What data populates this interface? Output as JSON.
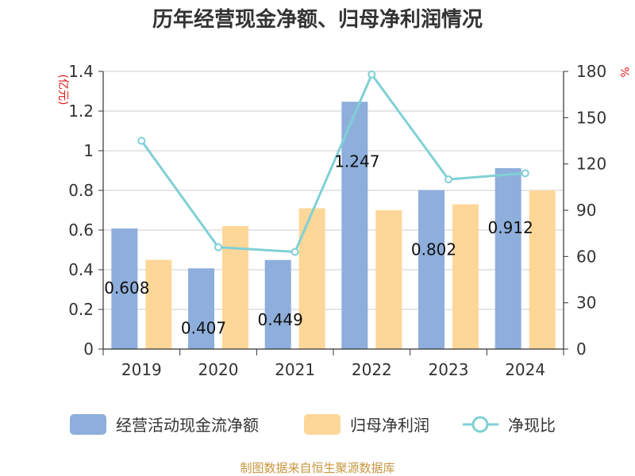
{
  "chart_data": {
    "type": "bar",
    "title": "历年经营现金净额、归母净利润情况",
    "categories": [
      "2019",
      "2020",
      "2021",
      "2022",
      "2023",
      "2024"
    ],
    "series": [
      {
        "name": "经营活动现金流净额",
        "kind": "bar",
        "axis": "left",
        "color": "#8eaedb",
        "values": [
          0.608,
          0.407,
          0.449,
          1.247,
          0.802,
          0.912
        ],
        "labels": [
          "0.608",
          "0.407",
          "0.449",
          "1.247",
          "0.802",
          "0.912"
        ]
      },
      {
        "name": "归母净利润",
        "kind": "bar",
        "axis": "left",
        "color": "#fdd798",
        "values": [
          0.45,
          0.62,
          0.71,
          0.7,
          0.73,
          0.8
        ]
      },
      {
        "name": "净现比",
        "kind": "line",
        "axis": "right",
        "color": "#7fd0d6",
        "values": [
          135,
          66,
          63,
          178,
          110,
          114
        ]
      }
    ],
    "y_left": {
      "unit": "(亿元)",
      "ylim": [
        0,
        1.4
      ],
      "ticks": [
        "0",
        "0.2",
        "0.4",
        "0.6",
        "0.8",
        "1",
        "1.2",
        "1.4"
      ]
    },
    "y_right": {
      "unit": "%",
      "ylim": [
        0,
        180
      ],
      "ticks": [
        "0",
        "30",
        "60",
        "90",
        "120",
        "150",
        "180"
      ]
    },
    "source": "制图数据来自恒生聚源数据库"
  }
}
